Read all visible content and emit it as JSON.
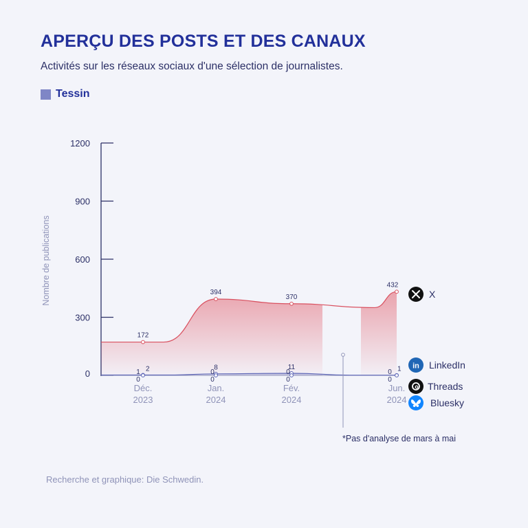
{
  "header": {
    "title": "APERÇU DES POSTS ET DES CANAUX",
    "subtitle": "Activités sur les réseaux sociaux d'une sélection de journalistes."
  },
  "legend": {
    "label": "Tessin",
    "color": "#7f86c6"
  },
  "footer": "Recherche et graphique: Die Schwedin.",
  "chart_data": {
    "type": "area",
    "ylabel": "Nombre de publications",
    "ylim": [
      0,
      1200
    ],
    "yticks": [
      0,
      300,
      600,
      900,
      1200
    ],
    "x_labels": [
      {
        "month": "Déc.",
        "year": "2023"
      },
      {
        "month": "Jan.",
        "year": "2024"
      },
      {
        "month": "Fév.",
        "year": "2024"
      },
      {
        "month": "Jun.",
        "year": "2024"
      }
    ],
    "gap_note": "*Pas d'analyse de mars à mai",
    "series": [
      {
        "name": "X",
        "icon": "x-icon",
        "color": "#d9505f",
        "values": [
          172,
          394,
          370,
          432
        ]
      },
      {
        "name": "LinkedIn",
        "icon": "linkedin-icon",
        "color": "#1f66b5",
        "values": [
          2,
          8,
          11,
          1
        ]
      },
      {
        "name": "Threads",
        "icon": "threads-icon",
        "color": "#111111",
        "values": [
          1,
          0,
          0,
          0
        ]
      },
      {
        "name": "Bluesky",
        "icon": "bluesky-icon",
        "color": "#1185fe",
        "values": [
          0,
          0,
          0,
          0
        ]
      }
    ]
  }
}
